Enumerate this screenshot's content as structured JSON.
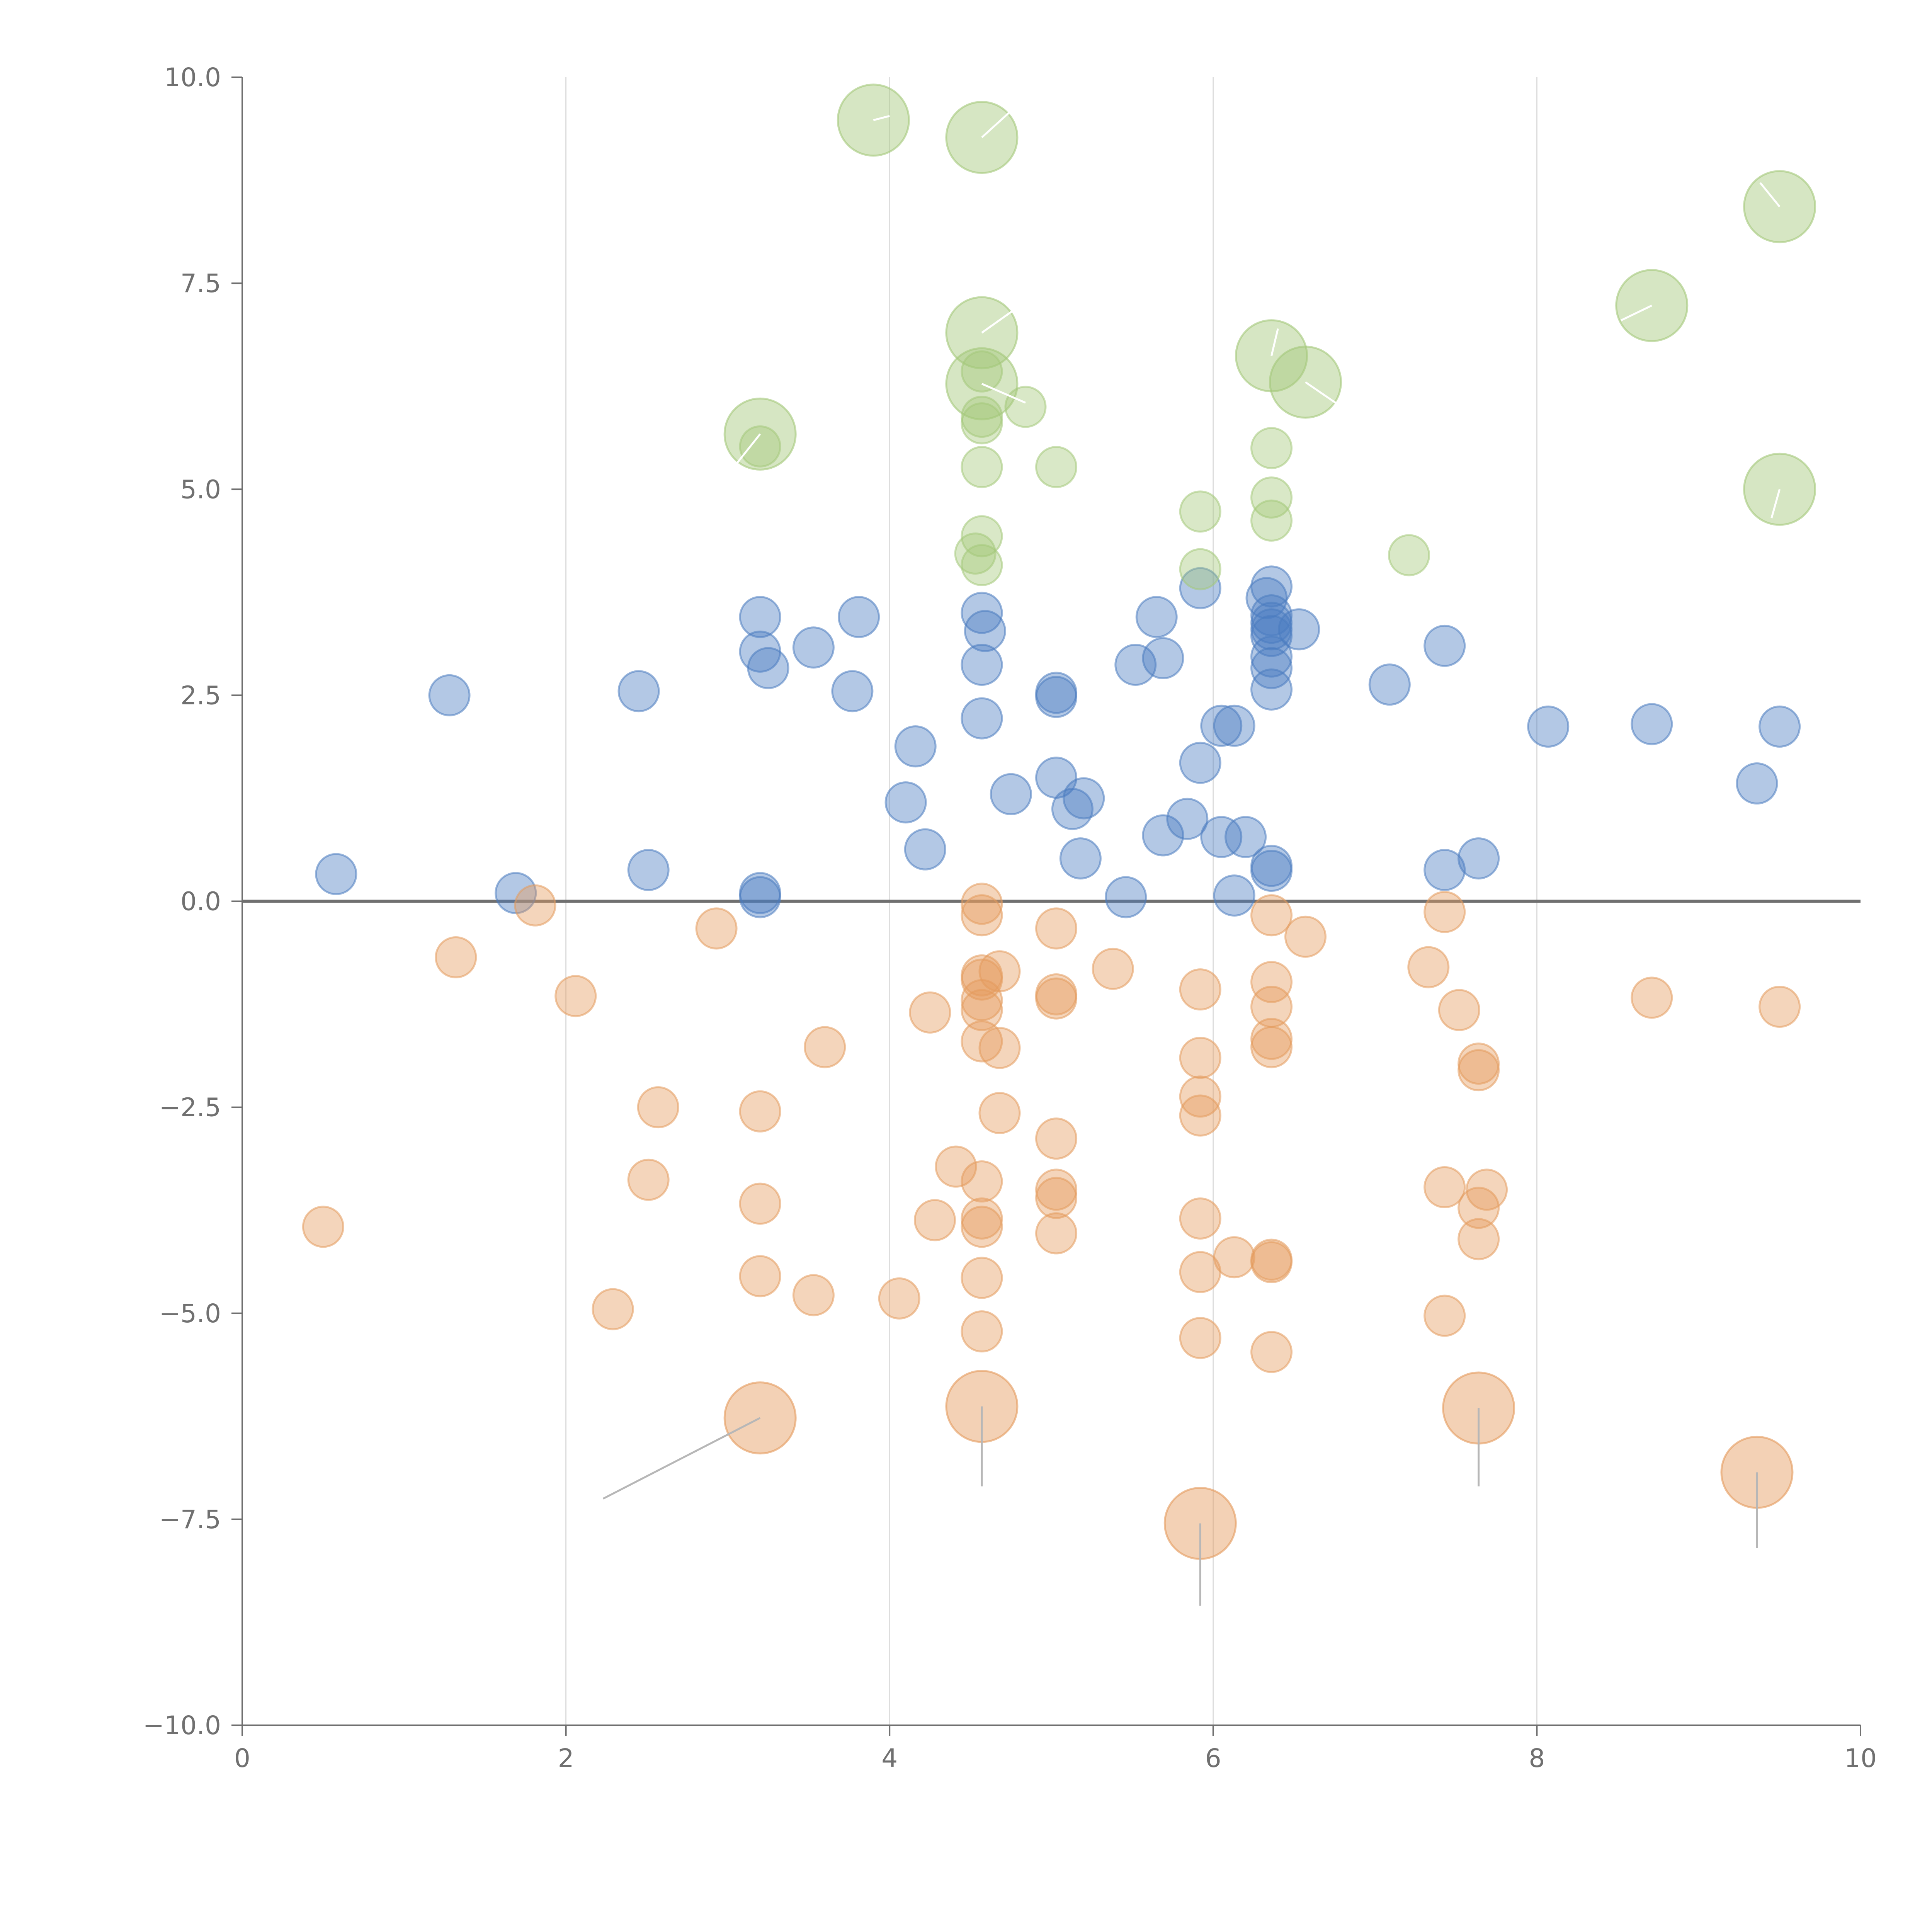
{
  "chart_data": {
    "type": "scatter",
    "title": "",
    "xlabel": "",
    "ylabel": "",
    "xlim": [
      0,
      10
    ],
    "ylim": [
      -10,
      10
    ],
    "x_ticks": [
      0,
      2,
      4,
      6,
      8,
      10
    ],
    "x_tick_labels": [
      "0",
      "2",
      "4",
      "6",
      "8",
      "10"
    ],
    "y_ticks": [
      10,
      7.5,
      5,
      2.5,
      0,
      -2.5,
      -5,
      -7.5,
      -10
    ],
    "y_tick_labels": [
      "10.0",
      "7.5",
      "5.0",
      "2.5",
      "0.0",
      "−2.5",
      "−5.0",
      "−7.5",
      "−10.0"
    ],
    "vertical_grid": true,
    "zero_line": true,
    "series": [
      {
        "name": "blue",
        "color": "#4a7cc0",
        "points": [
          [
            0.58,
            0.33
          ],
          [
            1.28,
            2.5
          ],
          [
            1.69,
            0.1
          ],
          [
            2.45,
            2.55
          ],
          [
            2.51,
            0.38
          ],
          [
            3.2,
            3.45
          ],
          [
            3.2,
            3.03
          ],
          [
            3.25,
            2.83
          ],
          [
            3.2,
            0.1
          ],
          [
            3.2,
            0.05
          ],
          [
            3.53,
            3.08
          ],
          [
            3.77,
            2.55
          ],
          [
            3.81,
            3.45
          ],
          [
            4.1,
            1.2
          ],
          [
            4.16,
            1.88
          ],
          [
            4.22,
            0.63
          ],
          [
            4.57,
            3.5
          ],
          [
            4.59,
            3.28
          ],
          [
            4.57,
            2.87
          ],
          [
            4.57,
            2.22
          ],
          [
            4.75,
            1.3
          ],
          [
            5.03,
            2.53
          ],
          [
            5.03,
            2.48
          ],
          [
            5.03,
            1.5
          ],
          [
            5.13,
            1.12
          ],
          [
            5.2,
            1.25
          ],
          [
            5.18,
            0.52
          ],
          [
            5.46,
            0.05
          ],
          [
            5.52,
            2.87
          ],
          [
            5.65,
            3.45
          ],
          [
            5.69,
            2.95
          ],
          [
            5.69,
            0.8
          ],
          [
            5.84,
            1.0
          ],
          [
            5.92,
            3.8
          ],
          [
            5.92,
            1.68
          ],
          [
            6.05,
            2.13
          ],
          [
            6.05,
            0.78
          ],
          [
            6.13,
            2.13
          ],
          [
            6.13,
            0.07
          ],
          [
            6.2,
            0.78
          ],
          [
            6.33,
            3.68
          ],
          [
            6.36,
            3.82
          ],
          [
            6.36,
            3.47
          ],
          [
            6.36,
            3.38
          ],
          [
            6.36,
            3.3
          ],
          [
            6.36,
            3.22
          ],
          [
            6.36,
            2.97
          ],
          [
            6.36,
            2.83
          ],
          [
            6.36,
            2.57
          ],
          [
            6.36,
            0.43
          ],
          [
            6.36,
            0.37
          ],
          [
            6.53,
            3.3
          ],
          [
            7.09,
            2.63
          ],
          [
            7.43,
            3.1
          ],
          [
            7.43,
            0.38
          ],
          [
            7.64,
            0.52
          ],
          [
            8.07,
            2.12
          ],
          [
            8.71,
            2.15
          ],
          [
            9.36,
            1.43
          ],
          [
            9.5,
            2.12
          ]
        ]
      },
      {
        "name": "orange",
        "color": "#e49a5c",
        "points": [
          [
            0.5,
            -3.95
          ],
          [
            1.32,
            -0.68
          ],
          [
            1.81,
            -0.05
          ],
          [
            2.06,
            -1.15
          ],
          [
            2.29,
            -4.95
          ],
          [
            2.51,
            -3.38
          ],
          [
            2.57,
            -2.5
          ],
          [
            2.93,
            -0.33
          ],
          [
            3.2,
            -2.55
          ],
          [
            3.2,
            -3.67
          ],
          [
            3.2,
            -4.55
          ],
          [
            3.53,
            -4.78
          ],
          [
            3.6,
            -1.77
          ],
          [
            4.06,
            -4.82
          ],
          [
            4.25,
            -1.35
          ],
          [
            4.28,
            -3.87
          ],
          [
            4.41,
            -3.22
          ],
          [
            4.57,
            -0.03
          ],
          [
            4.57,
            -0.17
          ],
          [
            4.57,
            -0.9
          ],
          [
            4.57,
            -0.95
          ],
          [
            4.57,
            -1.2
          ],
          [
            4.57,
            -1.32
          ],
          [
            4.57,
            -1.7
          ],
          [
            4.57,
            -3.4
          ],
          [
            4.57,
            -3.85
          ],
          [
            4.57,
            -3.95
          ],
          [
            4.57,
            -4.57
          ],
          [
            4.57,
            -5.22
          ],
          [
            4.68,
            -0.85
          ],
          [
            4.68,
            -1.78
          ],
          [
            4.68,
            -2.57
          ],
          [
            5.03,
            -0.33
          ],
          [
            5.03,
            -1.13
          ],
          [
            5.03,
            -1.18
          ],
          [
            5.03,
            -2.88
          ],
          [
            5.03,
            -3.5
          ],
          [
            5.03,
            -3.6
          ],
          [
            5.03,
            -4.03
          ],
          [
            5.38,
            -0.82
          ],
          [
            5.92,
            -1.07
          ],
          [
            5.92,
            -1.9
          ],
          [
            5.92,
            -2.37
          ],
          [
            5.92,
            -2.6
          ],
          [
            5.92,
            -3.85
          ],
          [
            5.92,
            -4.5
          ],
          [
            5.92,
            -5.3
          ],
          [
            6.13,
            -4.32
          ],
          [
            6.36,
            -0.17
          ],
          [
            6.36,
            -0.98
          ],
          [
            6.36,
            -1.28
          ],
          [
            6.36,
            -1.67
          ],
          [
            6.36,
            -1.77
          ],
          [
            6.36,
            -4.35
          ],
          [
            6.36,
            -4.38
          ],
          [
            6.36,
            -5.47
          ],
          [
            6.57,
            -0.43
          ],
          [
            7.33,
            -0.8
          ],
          [
            7.43,
            -0.13
          ],
          [
            7.43,
            -3.47
          ],
          [
            7.43,
            -5.03
          ],
          [
            7.52,
            -1.32
          ],
          [
            7.64,
            -1.97
          ],
          [
            7.64,
            -2.05
          ],
          [
            7.64,
            -3.72
          ],
          [
            7.64,
            -4.1
          ],
          [
            7.69,
            -3.5
          ],
          [
            8.71,
            -1.17
          ],
          [
            9.5,
            -1.28
          ]
        ]
      },
      {
        "name": "green",
        "color": "#a4c87a",
        "points": [
          [
            3.2,
            5.52
          ],
          [
            4.57,
            6.43
          ],
          [
            4.57,
            5.88
          ],
          [
            4.57,
            5.8
          ],
          [
            4.57,
            5.27
          ],
          [
            4.57,
            4.43
          ],
          [
            4.53,
            4.22
          ],
          [
            4.57,
            4.08
          ],
          [
            4.84,
            6.0
          ],
          [
            5.03,
            5.27
          ],
          [
            5.92,
            4.73
          ],
          [
            5.92,
            4.03
          ],
          [
            6.36,
            5.5
          ],
          [
            6.36,
            4.9
          ],
          [
            6.36,
            4.62
          ],
          [
            7.21,
            4.2
          ]
        ]
      }
    ],
    "highlight_points": [
      {
        "series": "green",
        "x": 3.9,
        "y": 9.48
      },
      {
        "series": "green",
        "x": 4.57,
        "y": 9.27
      },
      {
        "series": "green",
        "x": 9.5,
        "y": 8.43
      },
      {
        "series": "green",
        "x": 4.57,
        "y": 6.9
      },
      {
        "series": "green",
        "x": 8.71,
        "y": 7.23
      },
      {
        "series": "green",
        "x": 6.36,
        "y": 6.62
      },
      {
        "series": "green",
        "x": 6.57,
        "y": 6.3
      },
      {
        "series": "green",
        "x": 4.57,
        "y": 6.28
      },
      {
        "series": "green",
        "x": 3.2,
        "y": 5.67
      },
      {
        "series": "green",
        "x": 9.5,
        "y": 5.0
      },
      {
        "series": "orange",
        "x": 3.2,
        "y": -6.27
      },
      {
        "series": "orange",
        "x": 4.57,
        "y": -6.13
      },
      {
        "series": "orange",
        "x": 7.64,
        "y": -6.15
      },
      {
        "series": "orange",
        "x": 9.36,
        "y": -6.93
      },
      {
        "series": "orange",
        "x": 5.92,
        "y": -7.55
      }
    ],
    "annotation_lines": [
      {
        "from": [
          3.9,
          9.48
        ],
        "to": [
          4.0,
          9.53
        ],
        "color": "#ffffff"
      },
      {
        "from": [
          4.57,
          9.27
        ],
        "to": [
          4.8,
          9.68
        ],
        "color": "#ffffff"
      },
      {
        "from": [
          9.5,
          8.43
        ],
        "to": [
          9.38,
          8.72
        ],
        "color": "#ffffff"
      },
      {
        "from": [
          4.57,
          6.9
        ],
        "to": [
          4.8,
          7.22
        ],
        "color": "#ffffff"
      },
      {
        "from": [
          8.71,
          7.23
        ],
        "to": [
          8.52,
          7.05
        ],
        "color": "#ffffff"
      },
      {
        "from": [
          6.36,
          6.62
        ],
        "to": [
          6.4,
          6.95
        ],
        "color": "#ffffff"
      },
      {
        "from": [
          6.57,
          6.3
        ],
        "to": [
          6.83,
          5.95
        ],
        "color": "#ffffff"
      },
      {
        "from": [
          4.57,
          6.28
        ],
        "to": [
          4.84,
          6.05
        ],
        "color": "#ffffff"
      },
      {
        "from": [
          3.2,
          5.67
        ],
        "to": [
          3.05,
          5.3
        ],
        "color": "#ffffff"
      },
      {
        "from": [
          9.5,
          5.0
        ],
        "to": [
          9.45,
          4.65
        ],
        "color": "#ffffff"
      },
      {
        "from": [
          3.2,
          -6.27
        ],
        "to": [
          2.23,
          -7.25
        ],
        "color": "#b7b7b7"
      },
      {
        "from": [
          4.57,
          -6.13
        ],
        "to": [
          4.57,
          -7.1
        ],
        "color": "#b7b7b7"
      },
      {
        "from": [
          7.64,
          -6.15
        ],
        "to": [
          7.64,
          -7.1
        ],
        "color": "#b7b7b7"
      },
      {
        "from": [
          9.36,
          -6.93
        ],
        "to": [
          9.36,
          -7.85
        ],
        "color": "#b7b7b7"
      },
      {
        "from": [
          5.92,
          -7.55
        ],
        "to": [
          5.92,
          -8.55
        ],
        "color": "#b7b7b7"
      }
    ],
    "colors": {
      "axis": "#707070",
      "grid": "#dddddd",
      "zero_line": "#707070"
    }
  }
}
